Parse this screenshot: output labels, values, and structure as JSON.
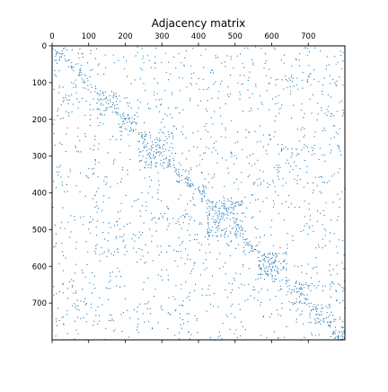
{
  "chart_data": {
    "type": "heatmap",
    "title": "Adjacency matrix",
    "xlabel": "",
    "ylabel": "",
    "xlim": [
      0,
      800
    ],
    "ylim": [
      0,
      800
    ],
    "y_inverted": true,
    "x_axis_position": "top",
    "x_ticks": [
      0,
      100,
      200,
      300,
      400,
      500,
      600,
      700
    ],
    "y_ticks": [
      0,
      100,
      200,
      300,
      400,
      500,
      600,
      700
    ],
    "grid": false,
    "legend": "none",
    "marker_color": "#1f77b4",
    "blocks": [
      {
        "range": [
          0,
          40
        ],
        "density": 0.22
      },
      {
        "range": [
          40,
          80
        ],
        "density": 0.16
      },
      {
        "range": [
          80,
          120
        ],
        "density": 0.14
      },
      {
        "range": [
          120,
          180
        ],
        "density": 0.2
      },
      {
        "range": [
          180,
          230
        ],
        "density": 0.2
      },
      {
        "range": [
          230,
          330
        ],
        "density": 0.2
      },
      {
        "range": [
          330,
          380
        ],
        "density": 0.14
      },
      {
        "range": [
          380,
          420
        ],
        "density": 0.18
      },
      {
        "range": [
          420,
          520
        ],
        "density": 0.3
      },
      {
        "range": [
          520,
          560
        ],
        "density": 0.16
      },
      {
        "range": [
          560,
          640
        ],
        "density": 0.28
      },
      {
        "range": [
          640,
          700
        ],
        "density": 0.22
      },
      {
        "range": [
          700,
          760
        ],
        "density": 0.2
      },
      {
        "range": [
          760,
          800
        ],
        "density": 0.3
      }
    ],
    "background_density": 0.035
  }
}
